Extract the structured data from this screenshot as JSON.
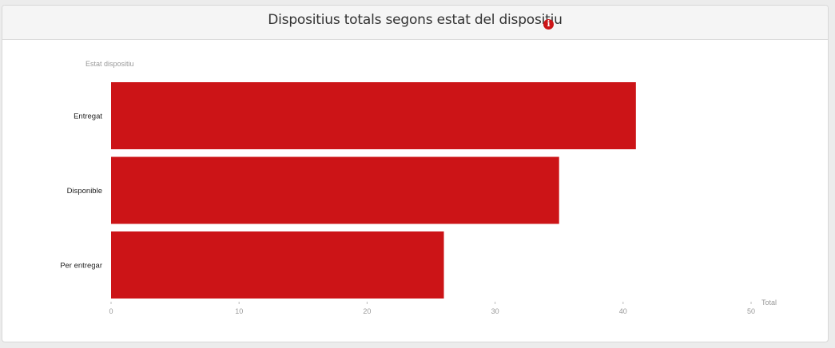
{
  "header": {
    "title": "Dispositius totals segons estat del dispositiu",
    "info_icon": "info-circle-icon"
  },
  "chart_data": {
    "type": "bar",
    "orientation": "horizontal",
    "categories": [
      "Entregat",
      "Disponible",
      "Per entregar"
    ],
    "values": [
      41,
      35,
      26
    ],
    "xlabel": "Total",
    "ylabel": "Estat dispositiu",
    "xlim": [
      0,
      50
    ],
    "xticks": [
      "0",
      "10",
      "20",
      "30",
      "40",
      "50"
    ],
    "bar_color": "#cc1417",
    "grid": false
  }
}
